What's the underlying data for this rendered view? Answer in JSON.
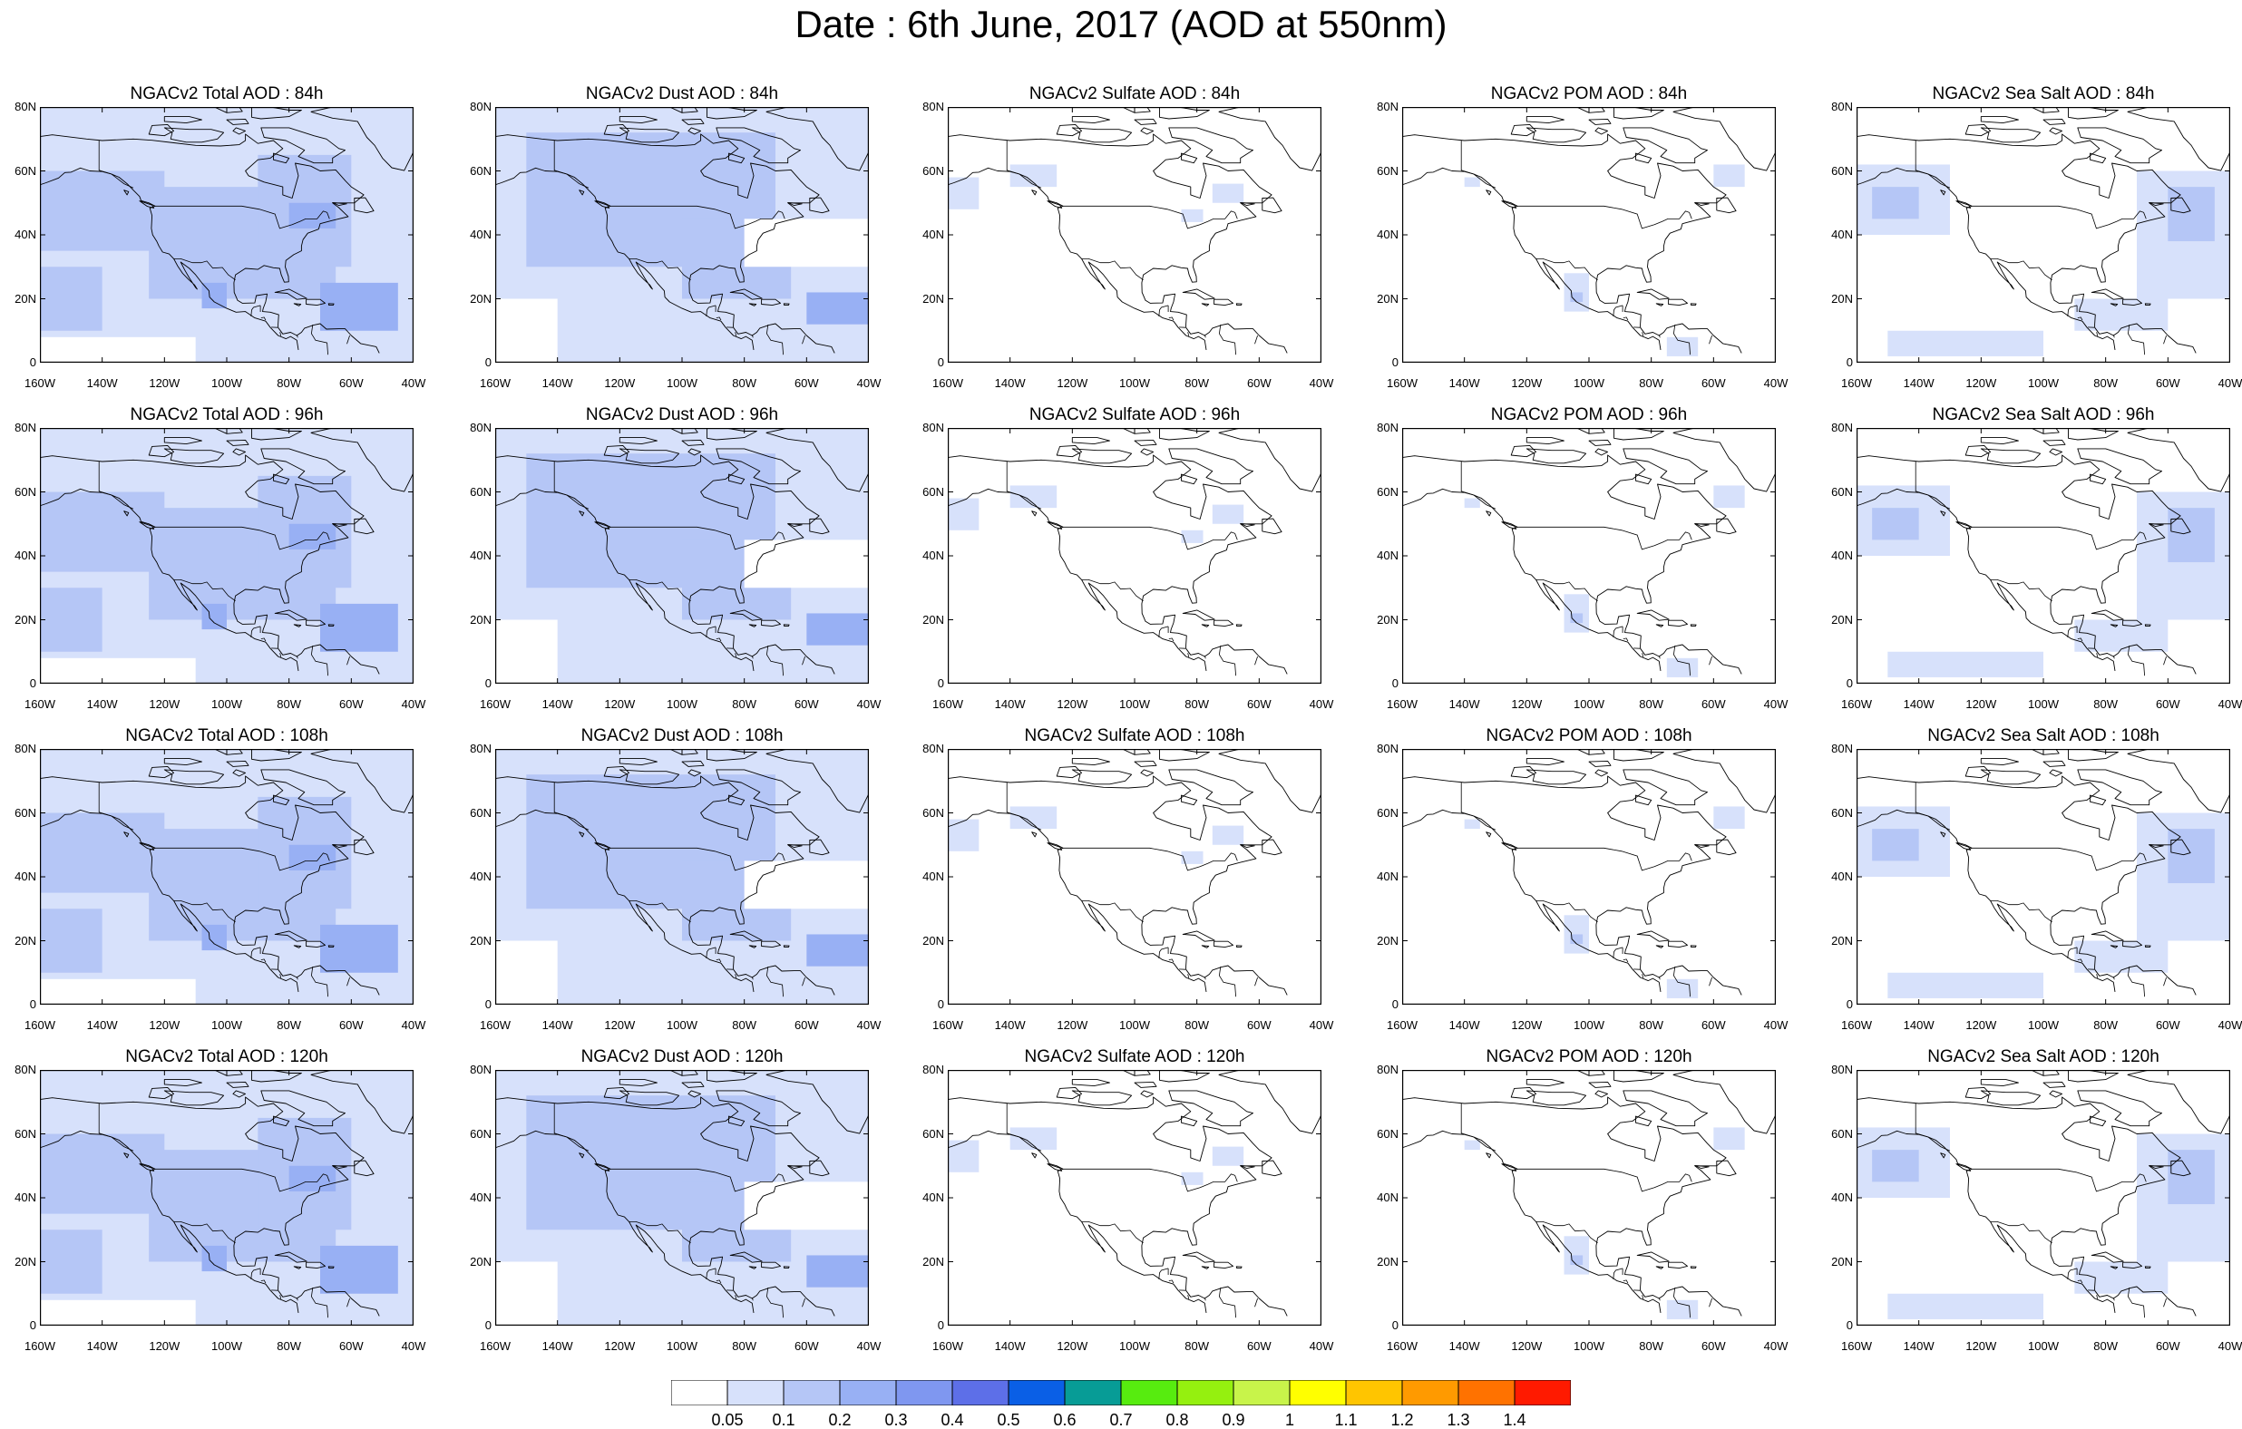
{
  "title": "Date : 6th June, 2017 (AOD at 550nm)",
  "lat_ticks": [
    "80N",
    "60N",
    "40N",
    "20N",
    "0"
  ],
  "lon_ticks": [
    "160W",
    "140W",
    "120W",
    "100W",
    "80W",
    "60W",
    "40W"
  ],
  "rows": [
    {
      "hour": "84h",
      "panels": [
        {
          "title": "NGACv2 Total AOD : 84h",
          "species": "total"
        },
        {
          "title": "NGACv2 Dust AOD : 84h",
          "species": "dust"
        },
        {
          "title": "NGACv2 Sulfate AOD : 84h",
          "species": "sulfate"
        },
        {
          "title": "NGACv2 POM AOD : 84h",
          "species": "pom"
        },
        {
          "title": "NGACv2 Sea Salt AOD : 84h",
          "species": "seasalt"
        }
      ]
    },
    {
      "hour": "96h",
      "panels": [
        {
          "title": "NGACv2 Total AOD : 96h",
          "species": "total"
        },
        {
          "title": "NGACv2 Dust AOD : 96h",
          "species": "dust"
        },
        {
          "title": "NGACv2 Sulfate AOD : 96h",
          "species": "sulfate"
        },
        {
          "title": "NGACv2 POM AOD : 96h",
          "species": "pom"
        },
        {
          "title": "NGACv2 Sea Salt AOD : 96h",
          "species": "seasalt"
        }
      ]
    },
    {
      "hour": "108h",
      "panels": [
        {
          "title": "NGACv2 Total AOD : 108h",
          "species": "total"
        },
        {
          "title": "NGACv2 Dust AOD : 108h",
          "species": "dust"
        },
        {
          "title": "NGACv2 Sulfate AOD : 108h",
          "species": "sulfate"
        },
        {
          "title": "NGACv2 POM AOD : 108h",
          "species": "pom"
        },
        {
          "title": "NGACv2 Sea Salt AOD : 108h",
          "species": "seasalt"
        }
      ]
    },
    {
      "hour": "120h",
      "panels": [
        {
          "title": "NGACv2 Total AOD : 120h",
          "species": "total"
        },
        {
          "title": "NGACv2 Dust AOD : 120h",
          "species": "dust"
        },
        {
          "title": "NGACv2 Sulfate AOD : 120h",
          "species": "sulfate"
        },
        {
          "title": "NGACv2 POM AOD : 120h",
          "species": "pom"
        },
        {
          "title": "NGACv2 Sea Salt  AOD : 120h",
          "species": "seasalt"
        }
      ]
    }
  ],
  "colorbar": {
    "labels": [
      "0.05",
      "0.1",
      "0.2",
      "0.3",
      "0.4",
      "0.5",
      "0.6",
      "0.7",
      "0.8",
      "0.9",
      "1",
      "1.1",
      "1.2",
      "1.3",
      "1.4"
    ],
    "colors": [
      "#ffffff",
      "#d7e1fb",
      "#b5c6f6",
      "#98b0f4",
      "#7f97f0",
      "#5d6fe8",
      "#0a5fe6",
      "#079c96",
      "#57ec0f",
      "#95f00f",
      "#c8f44a",
      "#ffff00",
      "#ffc500",
      "#ff9a00",
      "#ff7200",
      "#ff1a00"
    ]
  }
}
